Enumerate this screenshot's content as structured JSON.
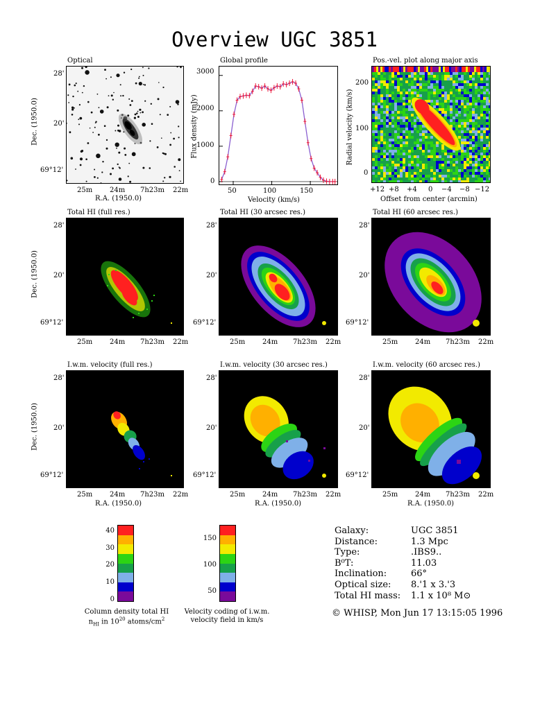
{
  "title": "Overview UGC 3851",
  "panels": {
    "optical": {
      "title": "Optical"
    },
    "profile": {
      "title": "Global profile"
    },
    "pv": {
      "title": "Pos.-vel. plot along major axis"
    },
    "hi_full": {
      "title": "Total HI (full res.)"
    },
    "hi_30": {
      "title": "Total HI (30 arcsec res.)"
    },
    "hi_60": {
      "title": "Total HI (60 arcsec res.)"
    },
    "vel_full": {
      "title": "I.w.m. velocity (full res.)"
    },
    "vel_30": {
      "title": "I.w.m. velocity (30 arcsec res.)"
    },
    "vel_60": {
      "title": "I.w.m. velocity (60 arcsec res.)"
    }
  },
  "sky_axes": {
    "dec_ticks": [
      "28'",
      "20'",
      "69°12'"
    ],
    "ra_ticks": [
      "25m",
      "24m",
      "7h23m",
      "22m"
    ],
    "xlabel": "R.A. (1950.0)",
    "ylabel": "Dec. (1950.0)"
  },
  "chart_data": [
    {
      "type": "line",
      "name": "Global profile",
      "xlabel": "Velocity (km/s)",
      "ylabel": "Flux density (mJy)",
      "xlim": [
        32,
        185
      ],
      "ylim": [
        -80,
        3250
      ],
      "xticks": [
        50,
        100,
        150
      ],
      "yticks": [
        0,
        1000,
        2000,
        3000
      ],
      "x": [
        35,
        39,
        43,
        47,
        51,
        55,
        59,
        63,
        67,
        71,
        75,
        79,
        83,
        87,
        91,
        95,
        99,
        103,
        107,
        111,
        115,
        119,
        123,
        127,
        131,
        135,
        139,
        143,
        147,
        151,
        155,
        159,
        163,
        167,
        171,
        175,
        179,
        182
      ],
      "y": [
        60,
        280,
        700,
        1300,
        1900,
        2300,
        2400,
        2420,
        2440,
        2430,
        2550,
        2700,
        2680,
        2640,
        2700,
        2620,
        2580,
        2650,
        2700,
        2680,
        2760,
        2740,
        2780,
        2820,
        2780,
        2620,
        2300,
        1700,
        1100,
        650,
        380,
        250,
        120,
        40,
        10,
        0,
        0,
        0
      ]
    },
    {
      "type": "heatmap",
      "name": "Pos.-vel. plot",
      "xlabel": "Offset from center (arcmin)",
      "ylabel": "Radial velocity (km/s)",
      "xticks": [
        "+12",
        "+8",
        "+4",
        "0",
        "−4",
        "−8",
        "−12"
      ],
      "yticks": [
        0,
        100,
        200
      ],
      "ylim": [
        -15,
        240
      ]
    },
    {
      "type": "heatmap",
      "name": "Column density colorbar",
      "ticks": [
        0,
        10,
        20,
        30,
        40
      ],
      "range": [
        0,
        44
      ],
      "colors": [
        "#7a0a9a",
        "#0000cc",
        "#7fb0e8",
        "#17a04a",
        "#2cd414",
        "#f2ea00",
        "#ffb000",
        "#ff2020"
      ],
      "caption_line1": "Column density total HI",
      "caption_line2": "n_HI in 10^20 atoms/cm^2"
    },
    {
      "type": "heatmap",
      "name": "Velocity colorbar",
      "ticks": [
        50,
        100,
        150
      ],
      "range": [
        35,
        177
      ],
      "colors": [
        "#7a0a9a",
        "#0000cc",
        "#7fb0e8",
        "#17a04a",
        "#2cd414",
        "#f2ea00",
        "#ffb000",
        "#ff2020"
      ],
      "caption_line1": "Velocity coding of i.w.m.",
      "caption_line2": "velocity field in km/s"
    }
  ],
  "info": [
    {
      "key": "Galaxy:",
      "val": "UGC 3851"
    },
    {
      "key": "Distance:",
      "val": "1.3 Mpc"
    },
    {
      "key": "Type:",
      "val": ".IBS9.."
    },
    {
      "key": "B⁰T:",
      "val": "11.03"
    },
    {
      "key": "Inclination:",
      "val": "66°"
    },
    {
      "key": "Optical size:",
      "val": "8.'1 x 3.'3"
    },
    {
      "key": "Total HI mass:",
      "val": "1.1 x 10⁸ M⊙"
    }
  ],
  "footer": "© WHISP, Mon Jun 17 13:15:05 1996",
  "colors": {
    "red": "#ff2020",
    "orange": "#ffb000",
    "yellow": "#f2ea00",
    "lightgreen": "#2cd414",
    "darkgreen": "#17a04a",
    "lightblue": "#7fb0e8",
    "blue": "#0000cc",
    "purple": "#7a0a9a",
    "profile_line": "#8a5fd0",
    "profile_err": "#ee1133"
  }
}
